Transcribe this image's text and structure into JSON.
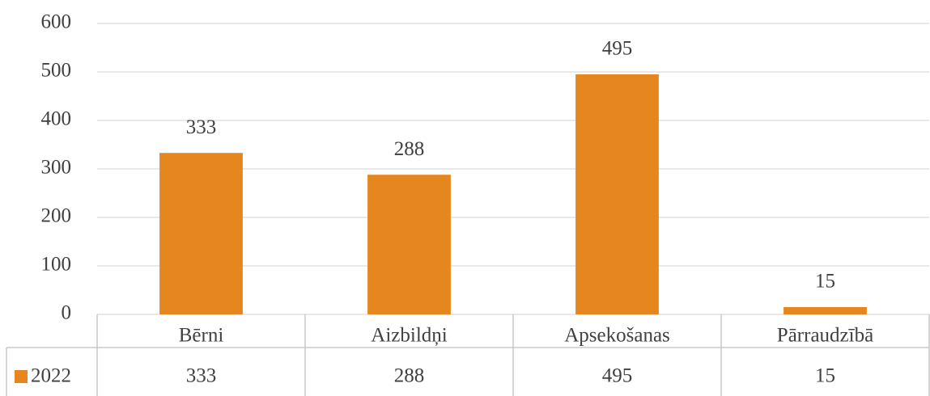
{
  "chart_data": {
    "type": "bar",
    "categories": [
      "Bērni",
      "Aizbildņi",
      "Apsekošanas",
      "Pārraudzībā"
    ],
    "series": [
      {
        "name": "2022",
        "color": "#e6861f",
        "values": [
          333,
          288,
          495,
          15
        ]
      }
    ],
    "ylim": [
      0,
      600
    ],
    "yticks": [
      0,
      100,
      200,
      300,
      400,
      500,
      600
    ],
    "grid": true
  }
}
